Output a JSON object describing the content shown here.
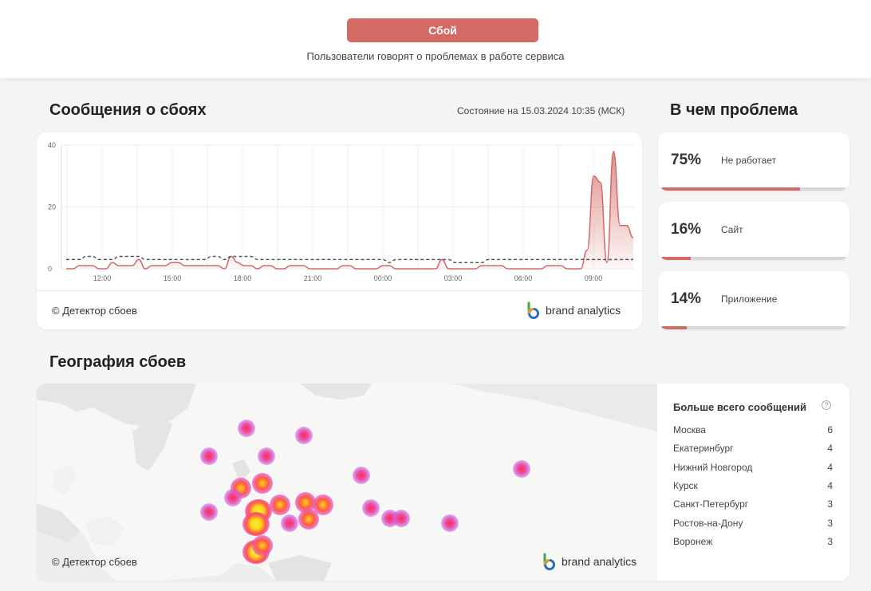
{
  "header": {
    "status_button": "Сбой",
    "status_text": "Пользователи говорят о проблемах в работе сервиса"
  },
  "reports": {
    "title": "Сообщения о сбоях",
    "state_label": "Состояние на 15.03.2024 10:35 (МСК)",
    "copyright": "© Детектор сбоев",
    "brand": "brand analytics"
  },
  "chart_data": {
    "type": "area",
    "y_ticks": [
      "40",
      "20",
      "0"
    ],
    "ylim": [
      0,
      40
    ],
    "x_ticks": [
      "12:00",
      "15:00",
      "18:00",
      "21:00",
      "00:00",
      "03:00",
      "06:00",
      "09:00"
    ],
    "grid": true,
    "colors": {
      "reports": "#d46a64",
      "baseline": "#555555"
    },
    "series": [
      {
        "values": [
          0,
          0,
          1,
          1,
          1,
          0,
          0,
          2,
          1,
          1,
          1,
          3,
          0,
          1,
          1,
          1,
          2,
          2,
          1,
          1,
          1,
          1,
          1,
          1,
          0,
          4,
          2,
          1,
          1,
          0,
          1,
          1,
          0,
          0,
          1,
          1,
          1,
          0,
          0,
          0,
          0,
          0,
          1,
          1,
          0,
          0,
          0,
          0,
          1,
          1,
          0,
          0,
          0,
          0,
          0,
          0,
          0,
          3,
          0,
          0,
          0,
          0,
          0,
          1,
          1,
          1,
          1,
          0,
          0,
          0,
          0,
          0,
          0,
          1,
          1,
          1,
          0,
          0,
          0,
          6,
          30,
          28,
          2,
          38,
          14,
          14,
          10
        ]
      },
      {
        "values": [
          3,
          3,
          3,
          4,
          4,
          3,
          3,
          3,
          4,
          4,
          4,
          4,
          3,
          3,
          3,
          3,
          3,
          3,
          3,
          3,
          3,
          3,
          4,
          4,
          3,
          4,
          4,
          4,
          4,
          3,
          3,
          3,
          3,
          3,
          3,
          3,
          3,
          3,
          3,
          3,
          3,
          3,
          3,
          3,
          3,
          3,
          3,
          3,
          3,
          2,
          3,
          3,
          3,
          3,
          3,
          3,
          3,
          3,
          3,
          2,
          2,
          2,
          2,
          2,
          3,
          3,
          3,
          3,
          3,
          3,
          3,
          3,
          3,
          3,
          3,
          3,
          3,
          3,
          3,
          3,
          3,
          3,
          3,
          3,
          3,
          3,
          3
        ]
      }
    ]
  },
  "problems": {
    "title": "В чем проблема",
    "items": [
      {
        "pct": "75%",
        "label": "Не работает",
        "value": 0.75
      },
      {
        "pct": "16%",
        "label": "Сайт",
        "value": 0.16
      },
      {
        "pct": "14%",
        "label": "Приложение",
        "value": 0.14
      }
    ]
  },
  "geo": {
    "title": "География сбоев",
    "copyright": "© Детектор сбоев",
    "brand": "brand analytics",
    "cities_title": "Больше всего сообщений",
    "help_icon": "question-icon",
    "cities": [
      {
        "name": "Москва",
        "count": "6"
      },
      {
        "name": "Екатеринбург",
        "count": "4"
      },
      {
        "name": "Нижний Новгород",
        "count": "4"
      },
      {
        "name": "Курск",
        "count": "4"
      },
      {
        "name": "Санкт-Петербург",
        "count": "3"
      },
      {
        "name": "Ростов-на-Дону",
        "count": "3"
      },
      {
        "name": "Воронеж",
        "count": "3"
      }
    ]
  }
}
